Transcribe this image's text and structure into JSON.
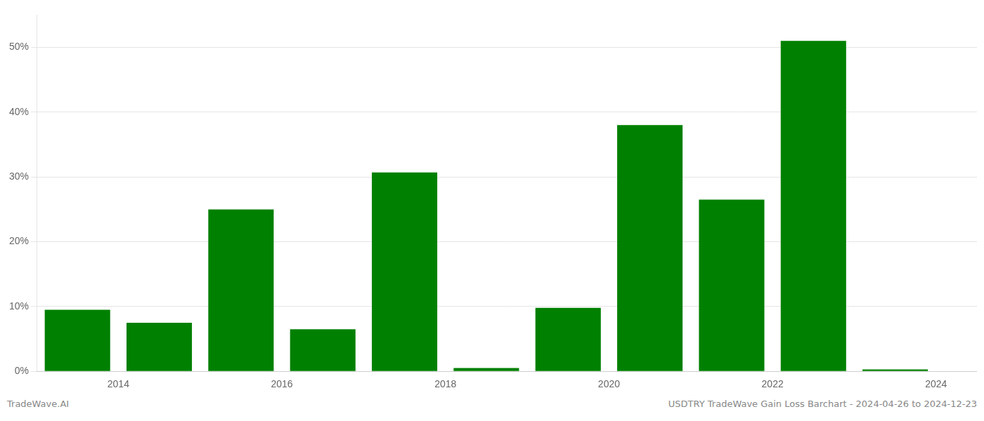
{
  "chart_data": {
    "type": "bar",
    "x": [
      2013.5,
      2014.5,
      2015.5,
      2016.5,
      2017.5,
      2018.5,
      2019.5,
      2020.5,
      2021.5,
      2022.5,
      2023.5
    ],
    "values": [
      9.5,
      7.5,
      25.0,
      6.5,
      30.7,
      0.5,
      9.8,
      38.0,
      26.5,
      51.0,
      0.3
    ],
    "color": "#008000",
    "xlim": [
      2013.0,
      2024.5
    ],
    "xticks": [
      2014,
      2016,
      2018,
      2020,
      2022,
      2024
    ],
    "ylim": [
      0,
      55
    ],
    "yticks": [
      {
        "value": 0,
        "label": "0%"
      },
      {
        "value": 10,
        "label": "10%"
      },
      {
        "value": 20,
        "label": "20%"
      },
      {
        "value": 30,
        "label": "30%"
      },
      {
        "value": 40,
        "label": "40%"
      },
      {
        "value": 50,
        "label": "50%"
      }
    ],
    "grid": true,
    "annotations": [
      "TradeWave.AI",
      "USDTRY TradeWave Gain Loss Barchart - 2024-04-26 to 2024-12-23"
    ]
  }
}
